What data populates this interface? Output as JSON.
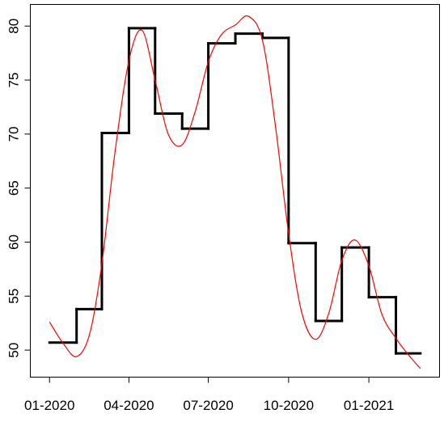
{
  "chart_data": {
    "type": "line",
    "title": "",
    "xlabel": "",
    "ylabel": "",
    "ylim": [
      47.5,
      82.0
    ],
    "y_ticks": [
      50,
      55,
      60,
      65,
      70,
      75,
      80
    ],
    "y_tick_labels": [
      "50",
      "55",
      "60",
      "65",
      "70",
      "75",
      "80"
    ],
    "x_ticks": [
      "2020-01-01",
      "2020-04-01",
      "2020-07-01",
      "2020-10-01",
      "2021-01-01"
    ],
    "x_tick_labels": [
      "01-2020",
      "04-2020",
      "07-2020",
      "10-2020",
      "01-2021"
    ],
    "grid": false,
    "legend": "none",
    "series": [
      {
        "kind": "step",
        "color": "#000000",
        "points": [
          {
            "x": "2020-01-01",
            "y": 50.7
          },
          {
            "x": "2020-02-01",
            "y": 53.8
          },
          {
            "x": "2020-03-01",
            "y": 70.1
          },
          {
            "x": "2020-04-01",
            "y": 79.8
          },
          {
            "x": "2020-05-01",
            "y": 71.9
          },
          {
            "x": "2020-06-01",
            "y": 70.5
          },
          {
            "x": "2020-07-01",
            "y": 78.4
          },
          {
            "x": "2020-08-01",
            "y": 79.3
          },
          {
            "x": "2020-09-01",
            "y": 78.9
          },
          {
            "x": "2020-10-01",
            "y": 59.9
          },
          {
            "x": "2020-11-01",
            "y": 52.7
          },
          {
            "x": "2020-12-01",
            "y": 59.5
          },
          {
            "x": "2021-01-01",
            "y": 54.9
          },
          {
            "x": "2021-02-01",
            "y": 49.7
          }
        ],
        "end_x": "2021-03-01"
      },
      {
        "kind": "smooth",
        "color": "#ff0000",
        "points": [
          {
            "x": "2020-01-01",
            "y": 52.6
          },
          {
            "x": "2020-01-16",
            "y": 50.7
          },
          {
            "x": "2020-02-01",
            "y": 49.4
          },
          {
            "x": "2020-02-16",
            "y": 51.5
          },
          {
            "x": "2020-03-01",
            "y": 58.0
          },
          {
            "x": "2020-03-16",
            "y": 68.3
          },
          {
            "x": "2020-04-01",
            "y": 76.8
          },
          {
            "x": "2020-04-16",
            "y": 79.6
          },
          {
            "x": "2020-05-01",
            "y": 75.0
          },
          {
            "x": "2020-05-16",
            "y": 70.0
          },
          {
            "x": "2020-06-01",
            "y": 69.0
          },
          {
            "x": "2020-06-16",
            "y": 72.1
          },
          {
            "x": "2020-07-01",
            "y": 76.7
          },
          {
            "x": "2020-07-16",
            "y": 79.2
          },
          {
            "x": "2020-08-01",
            "y": 80.1
          },
          {
            "x": "2020-08-16",
            "y": 80.9
          },
          {
            "x": "2020-09-01",
            "y": 78.7
          },
          {
            "x": "2020-09-16",
            "y": 70.7
          },
          {
            "x": "2020-10-01",
            "y": 60.8
          },
          {
            "x": "2020-10-16",
            "y": 53.5
          },
          {
            "x": "2020-11-01",
            "y": 51.0
          },
          {
            "x": "2020-11-16",
            "y": 53.4
          },
          {
            "x": "2020-12-01",
            "y": 58.3
          },
          {
            "x": "2020-12-16",
            "y": 60.2
          },
          {
            "x": "2021-01-01",
            "y": 57.8
          },
          {
            "x": "2021-01-16",
            "y": 53.3
          },
          {
            "x": "2021-02-01",
            "y": 51.1
          },
          {
            "x": "2021-02-16",
            "y": 49.5
          },
          {
            "x": "2021-03-01",
            "y": 48.3
          }
        ]
      }
    ]
  }
}
